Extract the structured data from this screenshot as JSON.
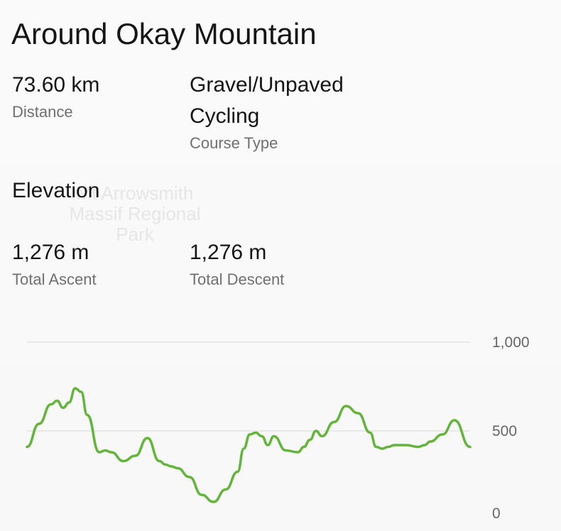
{
  "title": "Around Okay Mountain",
  "map_label": "Mt Arrowsmith Massif Regional Park",
  "distance": {
    "value": "73.60 km",
    "label": "Distance"
  },
  "course_type": {
    "value": "Gravel/Unpaved Cycling",
    "label": "Course Type"
  },
  "elevation_heading": "Elevation",
  "ascent": {
    "value": "1,276 m",
    "label": "Total Ascent"
  },
  "descent": {
    "value": "1,276 m",
    "label": "Total Descent"
  },
  "colors": {
    "line": "#62b43a",
    "grid": "#e3e3e3"
  },
  "chart_data": {
    "type": "line",
    "title": "",
    "xlabel": "",
    "ylabel": "",
    "ylim": [
      0,
      1000
    ],
    "yticks": [
      0,
      500,
      1000
    ],
    "ytick_labels": [
      "0",
      "500",
      "1,000"
    ],
    "grid": true,
    "x_unit": "km",
    "xlim": [
      0,
      73.6
    ],
    "series": [
      {
        "x": [
          0,
          2,
          4,
          5,
          6,
          7,
          8,
          9,
          10,
          12,
          13,
          14,
          16,
          18,
          20,
          22,
          23,
          24,
          25,
          27,
          29,
          31,
          33,
          35,
          36,
          37,
          38,
          39,
          40,
          41,
          43,
          45,
          46,
          47,
          48,
          49,
          51,
          53,
          55,
          57,
          58,
          59,
          60,
          61,
          63,
          65,
          66,
          67,
          69,
          71,
          73.6
        ],
        "y": [
          410,
          540,
          650,
          670,
          630,
          660,
          740,
          720,
          590,
          380,
          390,
          380,
          330,
          360,
          460,
          330,
          310,
          300,
          290,
          240,
          140,
          100,
          170,
          270,
          400,
          480,
          490,
          470,
          420,
          470,
          390,
          380,
          410,
          450,
          500,
          470,
          550,
          640,
          600,
          490,
          410,
          400,
          410,
          420,
          420,
          410,
          420,
          440,
          480,
          560,
          410
        ]
      }
    ]
  }
}
